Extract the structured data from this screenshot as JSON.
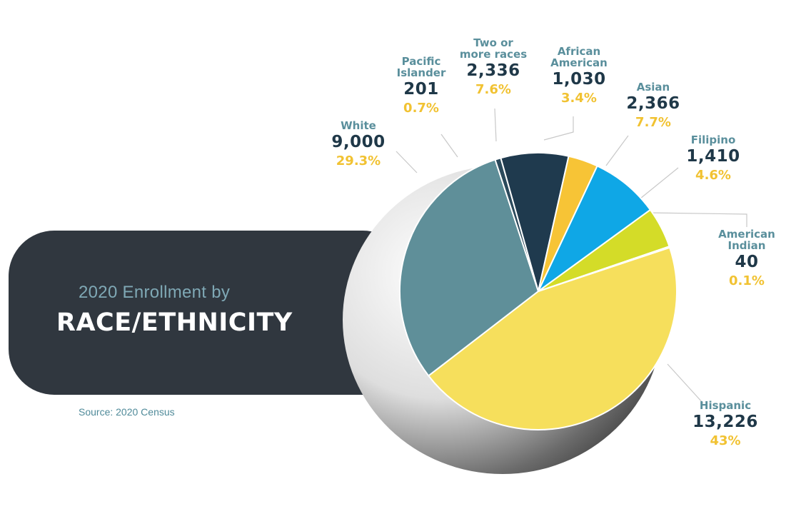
{
  "subtitle": "2020 Enrollment by",
  "title": "RACE/ETHNICITY",
  "source": "Source: 2020 Census",
  "chart_data": {
    "type": "pie",
    "title": "2020 Enrollment by RACE/ETHNICITY",
    "slices": [
      {
        "label": "Hispanic",
        "value": 13226,
        "value_label": "13,226",
        "percent_label": "43%",
        "color": "#f6df5c"
      },
      {
        "label": "White",
        "value": 9000,
        "value_label": "9,000",
        "percent_label": "29.3%",
        "color": "#5f8f99"
      },
      {
        "label": "Pacific Islander",
        "value": 201,
        "value_label": "201",
        "percent_label": "0.7%",
        "color": "#2b4a5c"
      },
      {
        "label": "Two or more races",
        "value": 2336,
        "value_label": "2,336",
        "percent_label": "7.6%",
        "color": "#1f3a4e"
      },
      {
        "label": "African American",
        "value": 1030,
        "value_label": "1,030",
        "percent_label": "3.4%",
        "color": "#f7c436"
      },
      {
        "label": "Asian",
        "value": 2366,
        "value_label": "2,366",
        "percent_label": "7.7%",
        "color": "#0fa7e6"
      },
      {
        "label": "Filipino",
        "value": 1410,
        "value_label": "1,410",
        "percent_label": "4.6%",
        "color": "#d4dc28"
      },
      {
        "label": "American Indian",
        "value": 40,
        "value_label": "40",
        "percent_label": "0.1%",
        "color": "#e8e0a0"
      }
    ],
    "text_color_name": "#5a8f9c",
    "text_color_count": "#1f3848",
    "text_color_percent": "#f1c232"
  }
}
